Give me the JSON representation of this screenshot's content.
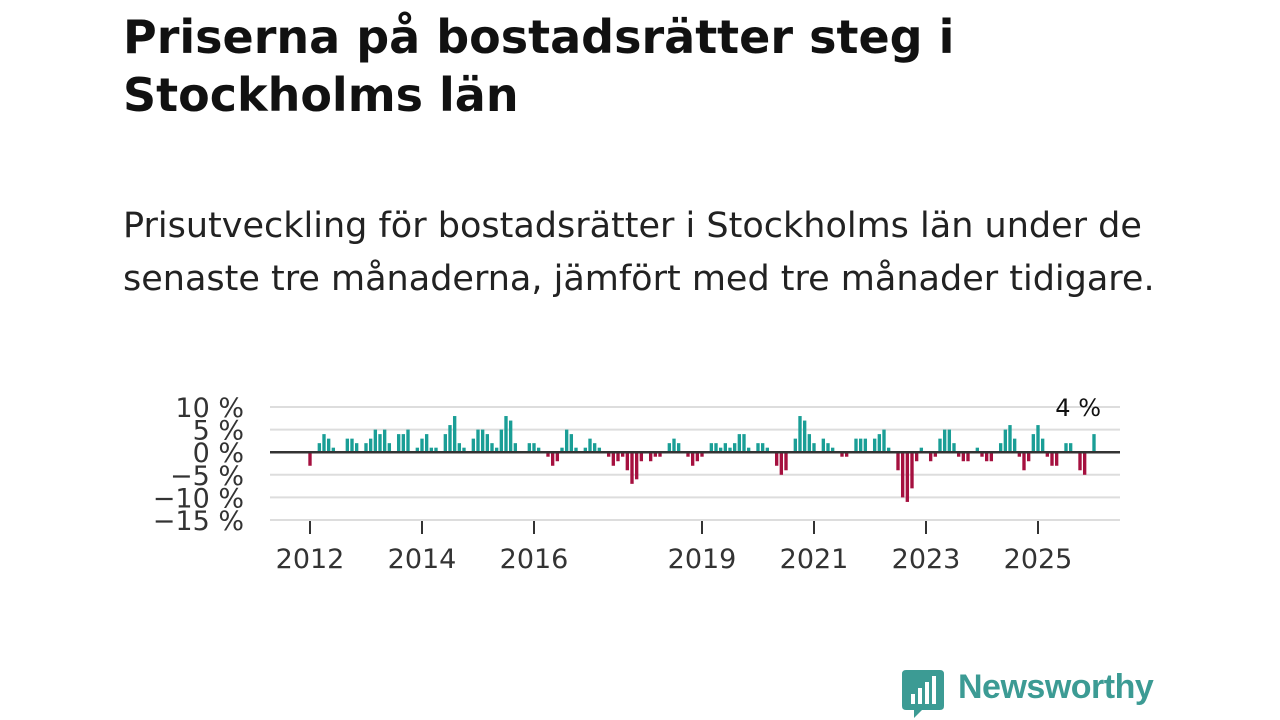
{
  "title": "Priserna på bostadsrätter steg i Stockholms län",
  "subtitle": "Prisutveckling för bostadsrätter i Stockholms län under de senaste tre månaderna, jämfört med tre månader tidigare.",
  "brand": {
    "name": "Newsworthy",
    "color": "#3c9b94"
  },
  "chart_data": {
    "type": "bar",
    "title": "Prisutveckling för bostadsrätter i Stockholms län under de senaste tre månaderna, jämfört med tre månader tidigare.",
    "xlabel": "",
    "ylabel": "",
    "unit": "%",
    "ylim": [
      -15,
      10
    ],
    "y_ticks": [
      10,
      5,
      0,
      -5,
      -10,
      -15
    ],
    "y_tick_labels": [
      "10 %",
      "5 %",
      "0 %",
      "−5 %",
      "−10 %",
      "−15 %"
    ],
    "x_ticks": [
      2012,
      2014,
      2016,
      2019,
      2021,
      2023,
      2025
    ],
    "x_tick_labels": [
      "2012",
      "2014",
      "2016",
      "2019",
      "2021",
      "2023",
      "2025"
    ],
    "x_start": 2012,
    "x_step_years": 0.0833333,
    "positive_color": "#1a9e96",
    "negative_color": "#a5103f",
    "grid": true,
    "last_value_label": "4 %",
    "values": [
      -3,
      0,
      2,
      4,
      3,
      1,
      0,
      0,
      3,
      3,
      2,
      0,
      2,
      3,
      5,
      4,
      5,
      2,
      0,
      4,
      4,
      5,
      0,
      1,
      3,
      4,
      1,
      1,
      0,
      4,
      6,
      8,
      2,
      1,
      0,
      3,
      5,
      5,
      4,
      2,
      1,
      5,
      8,
      7,
      2,
      0,
      0,
      2,
      2,
      1,
      0,
      -1,
      -3,
      -2,
      1,
      5,
      4,
      1,
      0,
      1,
      3,
      2,
      1,
      0,
      -1,
      -3,
      -2,
      -1,
      -4,
      -7,
      -6,
      -2,
      0,
      -2,
      -1,
      -1,
      0,
      2,
      3,
      2,
      0,
      -1,
      -3,
      -2,
      -1,
      0,
      2,
      2,
      1,
      2,
      1,
      2,
      4,
      4,
      1,
      0,
      2,
      2,
      1,
      0,
      -3,
      -5,
      -4,
      0,
      3,
      8,
      7,
      4,
      2,
      0,
      3,
      2,
      1,
      0,
      -1,
      -1,
      0,
      3,
      3,
      3,
      0,
      3,
      4,
      5,
      1,
      0,
      -4,
      -10,
      -11,
      -8,
      -2,
      1,
      0,
      -2,
      -1,
      3,
      5,
      5,
      2,
      -1,
      -2,
      -2,
      0,
      1,
      -1,
      -2,
      -2,
      0,
      2,
      5,
      6,
      3,
      -1,
      -4,
      -2,
      4,
      6,
      3,
      -1,
      -3,
      -3,
      0,
      2,
      2,
      0,
      -4,
      -5,
      0,
      4
    ]
  }
}
